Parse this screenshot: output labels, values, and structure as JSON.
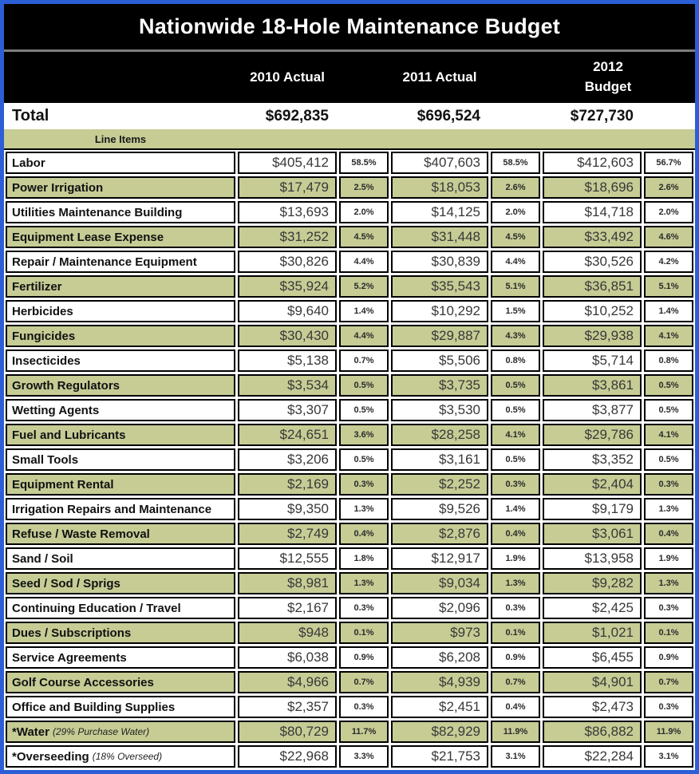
{
  "title": "Nationwide 18-Hole Maintenance Budget",
  "header": {
    "col_2010": "2010 Actual",
    "col_2011": "2011 Actual",
    "col_2012": "2012 Budget"
  },
  "total": {
    "label": "Total",
    "v2010": "$692,835",
    "v2011": "$696,524",
    "v2012": "$727,730"
  },
  "section_label": "Line Items",
  "colors": {
    "frame_blue": "#2c5fd6",
    "band_black": "#000000",
    "separator_gray": "#7f7f7f",
    "row_green": "#c6cc94"
  },
  "chart_data": {
    "type": "table",
    "title": "Nationwide 18-Hole Maintenance Budget",
    "columns": [
      "2010 Actual",
      "2011 Actual",
      "2012 Budget"
    ],
    "total_row": {
      "label": "Total",
      "values": [
        "$692,835",
        "$696,524",
        "$727,730"
      ]
    },
    "section_label": "Line Items",
    "rows": [
      {
        "label": "Labor",
        "note": "",
        "cells": [
          "$405,412",
          "58.5%",
          "$407,603",
          "58.5%",
          "$412,603",
          "56.7%"
        ]
      },
      {
        "label": "Power Irrigation",
        "note": "",
        "cells": [
          "$17,479",
          "2.5%",
          "$18,053",
          "2.6%",
          "$18,696",
          "2.6%"
        ]
      },
      {
        "label": "Utilities Maintenance Building",
        "note": "",
        "cells": [
          "$13,693",
          "2.0%",
          "$14,125",
          "2.0%",
          "$14,718",
          "2.0%"
        ]
      },
      {
        "label": "Equipment Lease Expense",
        "note": "",
        "cells": [
          "$31,252",
          "4.5%",
          "$31,448",
          "4.5%",
          "$33,492",
          "4.6%"
        ]
      },
      {
        "label": "Repair / Maintenance Equipment",
        "note": "",
        "cells": [
          "$30,826",
          "4.4%",
          "$30,839",
          "4.4%",
          "$30,526",
          "4.2%"
        ]
      },
      {
        "label": "Fertilizer",
        "note": "",
        "cells": [
          "$35,924",
          "5.2%",
          "$35,543",
          "5.1%",
          "$36,851",
          "5.1%"
        ]
      },
      {
        "label": "Herbicides",
        "note": "",
        "cells": [
          "$9,640",
          "1.4%",
          "$10,292",
          "1.5%",
          "$10,252",
          "1.4%"
        ]
      },
      {
        "label": "Fungicides",
        "note": "",
        "cells": [
          "$30,430",
          "4.4%",
          "$29,887",
          "4.3%",
          "$29,938",
          "4.1%"
        ]
      },
      {
        "label": "Insecticides",
        "note": "",
        "cells": [
          "$5,138",
          "0.7%",
          "$5,506",
          "0.8%",
          "$5,714",
          "0.8%"
        ]
      },
      {
        "label": "Growth Regulators",
        "note": "",
        "cells": [
          "$3,534",
          "0.5%",
          "$3,735",
          "0.5%",
          "$3,861",
          "0.5%"
        ]
      },
      {
        "label": "Wetting Agents",
        "note": "",
        "cells": [
          "$3,307",
          "0.5%",
          "$3,530",
          "0.5%",
          "$3,877",
          "0.5%"
        ]
      },
      {
        "label": "Fuel and Lubricants",
        "note": "",
        "cells": [
          "$24,651",
          "3.6%",
          "$28,258",
          "4.1%",
          "$29,786",
          "4.1%"
        ]
      },
      {
        "label": "Small Tools",
        "note": "",
        "cells": [
          "$3,206",
          "0.5%",
          "$3,161",
          "0.5%",
          "$3,352",
          "0.5%"
        ]
      },
      {
        "label": "Equipment Rental",
        "note": "",
        "cells": [
          "$2,169",
          "0.3%",
          "$2,252",
          "0.3%",
          "$2,404",
          "0.3%"
        ]
      },
      {
        "label": "Irrigation Repairs and Maintenance",
        "note": "",
        "cells": [
          "$9,350",
          "1.3%",
          "$9,526",
          "1.4%",
          "$9,179",
          "1.3%"
        ]
      },
      {
        "label": "Refuse / Waste Removal",
        "note": "",
        "cells": [
          "$2,749",
          "0.4%",
          "$2,876",
          "0.4%",
          "$3,061",
          "0.4%"
        ]
      },
      {
        "label": "Sand / Soil",
        "note": "",
        "cells": [
          "$12,555",
          "1.8%",
          "$12,917",
          "1.9%",
          "$13,958",
          "1.9%"
        ]
      },
      {
        "label": "Seed / Sod / Sprigs",
        "note": "",
        "cells": [
          "$8,981",
          "1.3%",
          "$9,034",
          "1.3%",
          "$9,282",
          "1.3%"
        ]
      },
      {
        "label": "Continuing Education / Travel",
        "note": "",
        "cells": [
          "$2,167",
          "0.3%",
          "$2,096",
          "0.3%",
          "$2,425",
          "0.3%"
        ]
      },
      {
        "label": "Dues / Subscriptions",
        "note": "",
        "cells": [
          "$948",
          "0.1%",
          "$973",
          "0.1%",
          "$1,021",
          "0.1%"
        ]
      },
      {
        "label": "Service Agreements",
        "note": "",
        "cells": [
          "$6,038",
          "0.9%",
          "$6,208",
          "0.9%",
          "$6,455",
          "0.9%"
        ]
      },
      {
        "label": "Golf Course Accessories",
        "note": "",
        "cells": [
          "$4,966",
          "0.7%",
          "$4,939",
          "0.7%",
          "$4,901",
          "0.7%"
        ]
      },
      {
        "label": "Office and Building Supplies",
        "note": "",
        "cells": [
          "$2,357",
          "0.3%",
          "$2,451",
          "0.4%",
          "$2,473",
          "0.3%"
        ]
      },
      {
        "label": "*Water",
        "note": "(29% Purchase Water)",
        "cells": [
          "$80,729",
          "11.7%",
          "$82,929",
          "11.9%",
          "$86,882",
          "11.9%"
        ]
      },
      {
        "label": "*Overseeding",
        "note": "(18% Overseed)",
        "cells": [
          "$22,968",
          "3.3%",
          "$21,753",
          "3.1%",
          "$22,284",
          "3.1%"
        ]
      }
    ]
  }
}
